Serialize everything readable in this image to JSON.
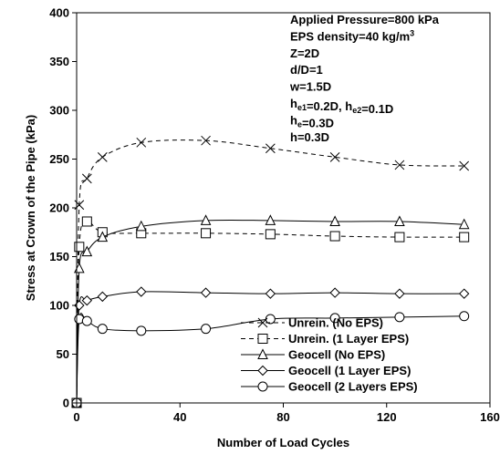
{
  "chart_data": {
    "type": "line",
    "xlabel": "Number of Load Cycles",
    "ylabel": "Stress at Crown of the Pipe (kPa)",
    "xlim": [
      0,
      160
    ],
    "ylim": [
      0,
      400
    ],
    "xticks": [
      0,
      40,
      80,
      120,
      160
    ],
    "yticks": [
      0,
      50,
      100,
      150,
      200,
      250,
      300,
      350,
      400
    ],
    "grid": false,
    "legend_position": "bottom-right",
    "annotations": [
      {
        "parts": [
          {
            "t": "Applied Pressure=800 kPa"
          }
        ]
      },
      {
        "parts": [
          {
            "t": "EPS density=40 kg/m"
          },
          {
            "t": "3",
            "sup": true
          }
        ]
      },
      {
        "parts": [
          {
            "t": "Z=2D"
          }
        ]
      },
      {
        "parts": [
          {
            "t": "d/D=1"
          }
        ]
      },
      {
        "parts": [
          {
            "t": "w=1.5D"
          }
        ]
      },
      {
        "parts": [
          {
            "t": "h"
          },
          {
            "t": "e1",
            "sub": true
          },
          {
            "t": "=0.2D, h"
          },
          {
            "t": "e2",
            "sub": true
          },
          {
            "t": "=0.1D"
          }
        ]
      },
      {
        "parts": [
          {
            "t": "h"
          },
          {
            "t": "e",
            "sub": true
          },
          {
            "t": "=0.3D"
          }
        ]
      },
      {
        "parts": [
          {
            "t": "h=0.3D"
          }
        ]
      }
    ],
    "series": [
      {
        "name": "Unrein. (No EPS)",
        "marker": "x",
        "dash": true,
        "x": [
          0,
          1,
          4,
          10,
          25,
          50,
          75,
          100,
          125,
          150
        ],
        "y": [
          0,
          203,
          230,
          252,
          267,
          269,
          261,
          252,
          244,
          243
        ]
      },
      {
        "name": "Unrein. (1 Layer EPS)",
        "marker": "square",
        "dash": true,
        "x": [
          0,
          1,
          4,
          10,
          25,
          50,
          75,
          100,
          125,
          150
        ],
        "y": [
          0,
          160,
          186,
          175,
          174,
          174,
          173,
          171,
          170,
          170
        ]
      },
      {
        "name": "Geocell (No EPS)",
        "marker": "triangle",
        "dash": false,
        "x": [
          0,
          1,
          4,
          10,
          25,
          50,
          75,
          100,
          125,
          150
        ],
        "y": [
          0,
          138,
          155,
          170,
          181,
          187,
          187,
          186,
          186,
          183
        ]
      },
      {
        "name": "Geocell (1 Layer EPS)",
        "marker": "diamond",
        "dash": false,
        "x": [
          0,
          1,
          4,
          10,
          25,
          50,
          75,
          100,
          125,
          150
        ],
        "y": [
          0,
          100,
          105,
          109,
          114,
          113,
          112,
          113,
          112,
          112
        ]
      },
      {
        "name": "Geocell (2 Layers EPS)",
        "marker": "circle",
        "dash": false,
        "x": [
          0,
          1,
          4,
          10,
          25,
          50,
          75,
          100,
          125,
          150
        ],
        "y": [
          0,
          86,
          84,
          76,
          74,
          76,
          86,
          87,
          88,
          89
        ]
      }
    ]
  }
}
